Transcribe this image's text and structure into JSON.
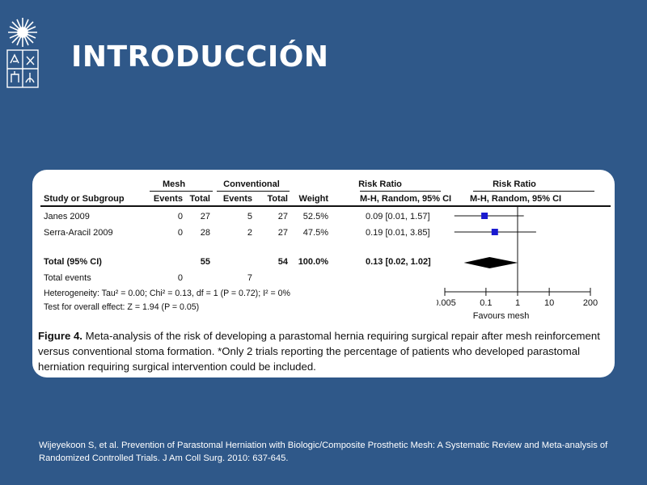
{
  "slide": {
    "title": "INTRODUCCIÓN"
  },
  "figure": {
    "group_headers": {
      "mesh": "Mesh",
      "conventional": "Conventional",
      "risk_ratio": "Risk Ratio",
      "risk_ratio_plot": "Risk Ratio"
    },
    "column_headers": {
      "study": "Study or Subgroup",
      "mesh_events": "Events",
      "mesh_total": "Total",
      "conv_events": "Events",
      "conv_total": "Total",
      "weight": "Weight",
      "rr_method": "M-H, Random, 95% CI",
      "plot_method": "M-H, Random, 95% CI"
    },
    "rows": [
      {
        "study": "Janes 2009",
        "mesh_events": "0",
        "mesh_total": "27",
        "conv_events": "5",
        "conv_total": "27",
        "weight": "52.5%",
        "rr": "0.09 [0.01, 1.57]"
      },
      {
        "study": "Serra-Aracil 2009",
        "mesh_events": "0",
        "mesh_total": "28",
        "conv_events": "2",
        "conv_total": "27",
        "weight": "47.5%",
        "rr": "0.19 [0.01, 3.85]"
      }
    ],
    "total": {
      "label": "Total (95% CI)",
      "mesh_total": "55",
      "conv_total": "54",
      "weight": "100.0%",
      "rr": "0.13 [0.02, 1.02]"
    },
    "total_events": {
      "label": "Total events",
      "mesh": "0",
      "conv": "7"
    },
    "heterogeneity": "Heterogeneity: Tau² = 0.00; Chi² = 0.13, df = 1 (P = 0.72); I² = 0%",
    "overall_effect": "Test for overall effect: Z = 1.94 (P = 0.05)",
    "caption_label": "Figure 4.",
    "caption_text": "Meta-analysis of the risk of developing a parastomal hernia requiring surgical repair after mesh reinforcement versus conventional stoma formation. *Only 2 trials reporting the percentage of patients who developed parastomal herniation requiring surgical intervention could be included."
  },
  "chart_data": {
    "type": "scatter",
    "xscale": "log",
    "xlim": [
      0.005,
      200
    ],
    "ticks": [
      "0.005",
      "0.1",
      "1",
      "10",
      "200"
    ],
    "xlabel": "Favours mesh",
    "reference_line": 1,
    "studies": [
      {
        "name": "Janes 2009",
        "rr": 0.09,
        "ci": [
          0.01,
          1.57
        ],
        "weight": 52.5
      },
      {
        "name": "Serra-Aracil 2009",
        "rr": 0.19,
        "ci": [
          0.01,
          3.85
        ],
        "weight": 47.5
      }
    ],
    "pooled": {
      "rr": 0.13,
      "ci": [
        0.02,
        1.02
      ]
    },
    "colors": {
      "marker": "#1a1ad0",
      "line": "#111111"
    }
  },
  "citation": "Wijeyekoon S, et al. Prevention of Parastomal Herniation with Biologic/Composite Prosthetic Mesh: A Systematic Review and Meta-analysis of Randomized Controlled Trials. J Am Coll Surg. 2010: 637-645."
}
